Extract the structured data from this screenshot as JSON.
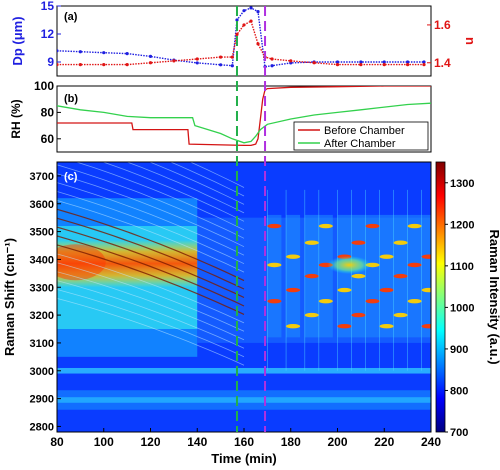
{
  "chart_data": [
    {
      "panel": "(a)",
      "type": "scatter",
      "ylabel_left": "Dp (μm)",
      "ylabel_right": "n",
      "left_axis_color": "#1f1fe0",
      "right_axis_color": "#e01414",
      "xlim": [
        80,
        240
      ],
      "ylim_left": [
        7.5,
        15
      ],
      "ylim_right": [
        1.33,
        1.7
      ],
      "yticks_left": [
        "9",
        "12",
        "15"
      ],
      "yticks_right": [
        "1.4",
        "1.6"
      ],
      "series": [
        {
          "axis": "left",
          "color": "#1f1fe0",
          "x": [
            80,
            90,
            100,
            110,
            120,
            130,
            140,
            150,
            155,
            157,
            160,
            163,
            166,
            169,
            172,
            180,
            190,
            200,
            210,
            220,
            230,
            237
          ],
          "y": [
            10.2,
            10.1,
            10.0,
            9.9,
            9.6,
            9.2,
            8.9,
            8.7,
            8.6,
            13.5,
            14.5,
            14.8,
            14.4,
            8.5,
            8.6,
            8.9,
            9.0,
            9.0,
            9.0,
            9.0,
            9.0,
            9.0
          ]
        },
        {
          "axis": "right",
          "color": "#e01414",
          "x": [
            80,
            90,
            100,
            110,
            120,
            130,
            140,
            150,
            155,
            157,
            160,
            163,
            166,
            169,
            172,
            180,
            190,
            200,
            210,
            220,
            230,
            237
          ],
          "y": [
            1.39,
            1.39,
            1.39,
            1.39,
            1.4,
            1.41,
            1.42,
            1.43,
            1.43,
            1.55,
            1.6,
            1.62,
            1.5,
            1.43,
            1.42,
            1.41,
            1.4,
            1.39,
            1.39,
            1.39,
            1.39,
            1.39
          ]
        }
      ]
    },
    {
      "panel": "(b)",
      "type": "line",
      "ylabel": "RH (%)",
      "xlim": [
        80,
        240
      ],
      "ylim": [
        50,
        100
      ],
      "yticks": [
        "60",
        "80",
        "100"
      ],
      "legend_position": "bottom-right",
      "series": [
        {
          "name": "Before Chamber",
          "color": "#d41414",
          "x": [
            80,
            112,
            112.5,
            136,
            136.5,
            160,
            163,
            165,
            166,
            167,
            168,
            169,
            170,
            180,
            200,
            220,
            240
          ],
          "y": [
            72,
            72,
            67,
            67,
            56,
            55,
            55,
            56,
            60,
            75,
            90,
            97,
            98,
            99,
            99.5,
            100,
            100
          ]
        },
        {
          "name": "After Chamber",
          "color": "#33d14d",
          "x": [
            80,
            90,
            100,
            110,
            120,
            130,
            138,
            139,
            150,
            155,
            160,
            163,
            165,
            167,
            170,
            180,
            190,
            200,
            210,
            220,
            230,
            240
          ],
          "y": [
            85,
            82,
            80,
            77,
            76,
            76,
            76,
            70,
            64,
            60,
            57,
            58,
            62,
            67,
            71,
            75,
            78,
            80,
            82,
            84,
            86,
            87
          ]
        }
      ]
    },
    {
      "panel": "(c)",
      "type": "heatmap",
      "xlabel": "Time (min)",
      "ylabel": "Raman Shift (cm⁻¹)",
      "xlim": [
        80,
        240
      ],
      "ylim": [
        2780,
        3750
      ],
      "xticks": [
        "80",
        "100",
        "120",
        "140",
        "160",
        "180",
        "200",
        "220",
        "240"
      ],
      "yticks": [
        "2800",
        "2900",
        "3000",
        "3100",
        "3200",
        "3300",
        "3400",
        "3500",
        "3600",
        "3700"
      ],
      "colorbar_label": "Raman Intensity (a.u.)",
      "colorbar_range": [
        700,
        1350
      ],
      "colorbar_ticks": [
        "700",
        "800",
        "900",
        "1000",
        "1100",
        "1200",
        "1300"
      ],
      "color_stops": [
        "#00007f",
        "#0000ff",
        "#007fff",
        "#00ffff",
        "#7fff7f",
        "#ffff00",
        "#ff7f00",
        "#ff0000",
        "#7f0000"
      ],
      "vertical_markers": [
        {
          "x": 157,
          "color": "#22b04a"
        },
        {
          "x": 169,
          "color": "#b030e0"
        }
      ]
    }
  ]
}
